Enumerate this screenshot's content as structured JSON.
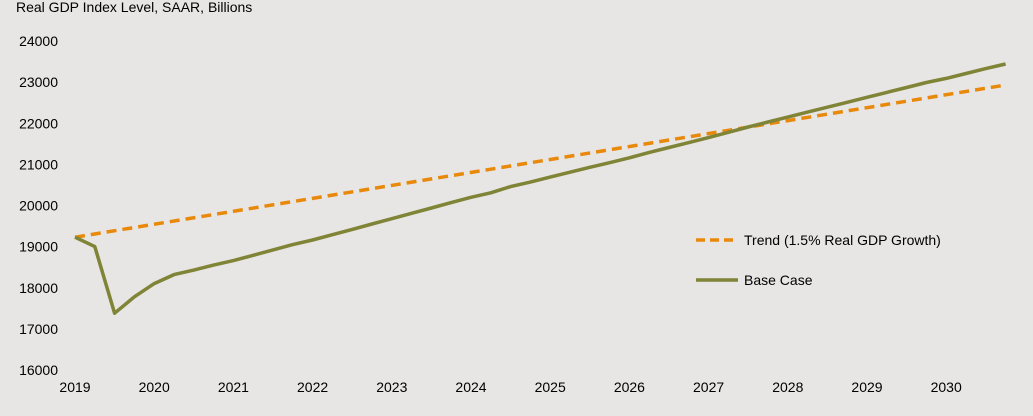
{
  "chart_data": {
    "type": "line",
    "title": "Real GDP Index Level, SAAR, Billions",
    "xlabel": "",
    "ylabel": "",
    "ylim": [
      16000,
      24000
    ],
    "yticks": [
      "16000",
      "17000",
      "18000",
      "19000",
      "20000",
      "21000",
      "22000",
      "23000",
      "24000"
    ],
    "xlim": [
      2019,
      2030.75
    ],
    "xticks": [
      "2019",
      "2020",
      "2021",
      "2022",
      "2023",
      "2024",
      "2025",
      "2026",
      "2027",
      "2028",
      "2029",
      "2030"
    ],
    "grid": false,
    "legend_position": "right",
    "series": [
      {
        "name": "Trend (1.5% Real GDP  Growth)",
        "style": "dashed",
        "color": "#e8890c",
        "points": [
          [
            2019.0,
            19230
          ],
          [
            2030.75,
            22930
          ]
        ]
      },
      {
        "name": "Base Case",
        "style": "solid",
        "color": "#7f8436",
        "points": [
          [
            2019.0,
            19230
          ],
          [
            2019.25,
            19000
          ],
          [
            2019.5,
            17380
          ],
          [
            2019.75,
            17780
          ],
          [
            2020.0,
            18100
          ],
          [
            2020.25,
            18320
          ],
          [
            2020.5,
            18430
          ],
          [
            2020.75,
            18550
          ],
          [
            2021.0,
            18660
          ],
          [
            2021.25,
            18790
          ],
          [
            2021.5,
            18920
          ],
          [
            2021.75,
            19050
          ],
          [
            2022.0,
            19160
          ],
          [
            2022.25,
            19290
          ],
          [
            2022.5,
            19420
          ],
          [
            2022.75,
            19550
          ],
          [
            2023.0,
            19680
          ],
          [
            2023.25,
            19810
          ],
          [
            2023.5,
            19940
          ],
          [
            2023.75,
            20070
          ],
          [
            2024.0,
            20200
          ],
          [
            2024.25,
            20310
          ],
          [
            2024.5,
            20460
          ],
          [
            2024.75,
            20570
          ],
          [
            2025.0,
            20690
          ],
          [
            2025.25,
            20810
          ],
          [
            2025.5,
            20930
          ],
          [
            2025.75,
            21040
          ],
          [
            2026.0,
            21160
          ],
          [
            2026.25,
            21290
          ],
          [
            2026.5,
            21410
          ],
          [
            2026.75,
            21530
          ],
          [
            2027.0,
            21650
          ],
          [
            2027.25,
            21780
          ],
          [
            2027.5,
            21910
          ],
          [
            2027.75,
            22030
          ],
          [
            2028.0,
            22150
          ],
          [
            2028.25,
            22270
          ],
          [
            2028.5,
            22390
          ],
          [
            2028.75,
            22510
          ],
          [
            2029.0,
            22630
          ],
          [
            2029.25,
            22750
          ],
          [
            2029.5,
            22870
          ],
          [
            2029.75,
            22990
          ],
          [
            2030.0,
            23090
          ],
          [
            2030.25,
            23210
          ],
          [
            2030.5,
            23330
          ],
          [
            2030.75,
            23440
          ]
        ]
      }
    ]
  }
}
